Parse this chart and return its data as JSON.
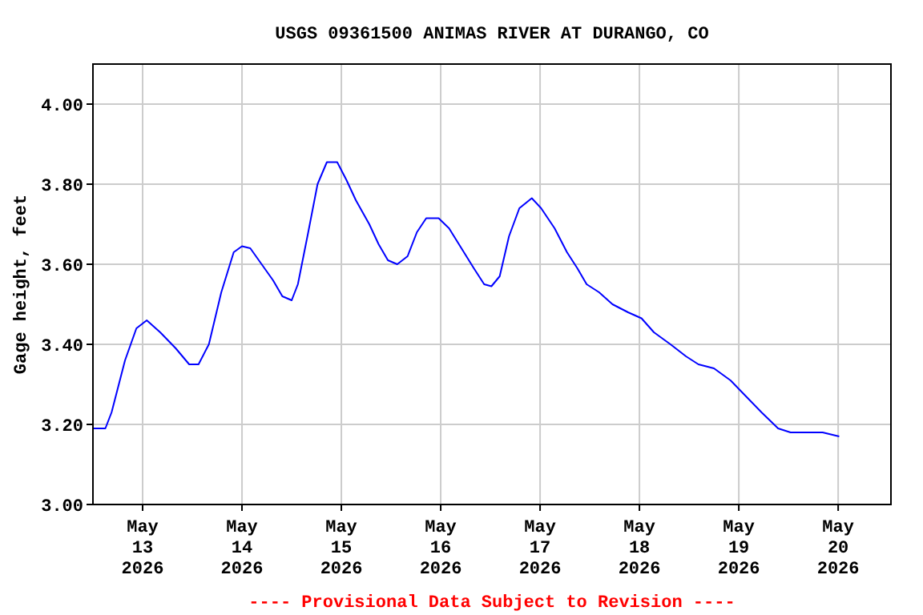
{
  "chart_data": {
    "type": "line",
    "title": "USGS 09361500 ANIMAS RIVER AT DURANGO, CO",
    "ylabel": "Gage height, feet",
    "annotations": [
      "---- Provisional Data Subject to Revision ----"
    ],
    "x": [
      "2026-05-12T12:00",
      "2026-05-12T15:00",
      "2026-05-12T16:30",
      "2026-05-12T19:45",
      "2026-05-12T22:30",
      "2026-05-13T01:00",
      "2026-05-13T04:15",
      "2026-05-13T08:00",
      "2026-05-13T11:15",
      "2026-05-13T13:30",
      "2026-05-13T16:00",
      "2026-05-13T19:00",
      "2026-05-13T22:00",
      "2026-05-14T00:00",
      "2026-05-14T02:00",
      "2026-05-14T04:45",
      "2026-05-14T07:30",
      "2026-05-14T09:45",
      "2026-05-14T12:00",
      "2026-05-14T13:30",
      "2026-05-14T16:00",
      "2026-05-14T18:15",
      "2026-05-14T20:30",
      "2026-05-14T23:00",
      "2026-05-15T01:15",
      "2026-05-15T03:30",
      "2026-05-15T06:45",
      "2026-05-15T09:00",
      "2026-05-15T11:15",
      "2026-05-15T13:30",
      "2026-05-15T16:00",
      "2026-05-15T18:15",
      "2026-05-15T20:30",
      "2026-05-15T23:30",
      "2026-05-16T02:00",
      "2026-05-16T05:00",
      "2026-05-16T08:00",
      "2026-05-16T10:30",
      "2026-05-16T12:15",
      "2026-05-16T14:15",
      "2026-05-16T16:30",
      "2026-05-16T19:00",
      "2026-05-16T22:00",
      "2026-05-17T00:15",
      "2026-05-17T03:30",
      "2026-05-17T06:30",
      "2026-05-17T09:00",
      "2026-05-17T11:15",
      "2026-05-17T14:15",
      "2026-05-17T17:30",
      "2026-05-17T21:15",
      "2026-05-18T00:30",
      "2026-05-18T03:30",
      "2026-05-18T07:30",
      "2026-05-18T11:15",
      "2026-05-18T14:15",
      "2026-05-18T18:00",
      "2026-05-18T22:00",
      "2026-05-19T01:45",
      "2026-05-19T05:30",
      "2026-05-19T09:30",
      "2026-05-19T12:30",
      "2026-05-19T16:15",
      "2026-05-19T20:15",
      "2026-05-20T00:15"
    ],
    "series": [
      {
        "color": "#0000ff",
        "values": [
          3.19,
          3.19,
          3.23,
          3.36,
          3.44,
          3.46,
          3.43,
          3.39,
          3.35,
          3.35,
          3.4,
          3.53,
          3.63,
          3.645,
          3.64,
          3.6,
          3.56,
          3.52,
          3.51,
          3.55,
          3.68,
          3.8,
          3.855,
          3.855,
          3.81,
          3.76,
          3.7,
          3.65,
          3.61,
          3.6,
          3.62,
          3.68,
          3.715,
          3.715,
          3.69,
          3.64,
          3.59,
          3.55,
          3.545,
          3.57,
          3.67,
          3.74,
          3.765,
          3.74,
          3.69,
          3.63,
          3.59,
          3.55,
          3.53,
          3.5,
          3.48,
          3.465,
          3.43,
          3.4,
          3.37,
          3.35,
          3.34,
          3.31,
          3.27,
          3.23,
          3.19,
          3.18,
          3.18,
          3.18,
          3.17
        ]
      }
    ],
    "xlim": [
      "2026-05-12T12:00",
      "2026-05-20T12:45"
    ],
    "xticks": [
      {
        "value": "2026-05-13",
        "label": "May\n13\n2026"
      },
      {
        "value": "2026-05-14",
        "label": "May\n14\n2026"
      },
      {
        "value": "2026-05-15",
        "label": "May\n15\n2026"
      },
      {
        "value": "2026-05-16",
        "label": "May\n16\n2026"
      },
      {
        "value": "2026-05-17",
        "label": "May\n17\n2026"
      },
      {
        "value": "2026-05-18",
        "label": "May\n18\n2026"
      },
      {
        "value": "2026-05-19",
        "label": "May\n19\n2026"
      },
      {
        "value": "2026-05-20",
        "label": "May\n20\n2026"
      }
    ],
    "ylim": [
      3.0,
      4.1
    ],
    "yticks": [
      {
        "value": 3,
        "label": "3.00"
      },
      {
        "value": 3.2,
        "label": "3.20"
      },
      {
        "value": 3.4,
        "label": "3.40"
      },
      {
        "value": 3.6,
        "label": "3.60"
      },
      {
        "value": 3.8,
        "label": "3.80"
      },
      {
        "value": 4,
        "label": "4.00"
      }
    ],
    "grid": true,
    "line_style": "solid",
    "marker": "none"
  }
}
